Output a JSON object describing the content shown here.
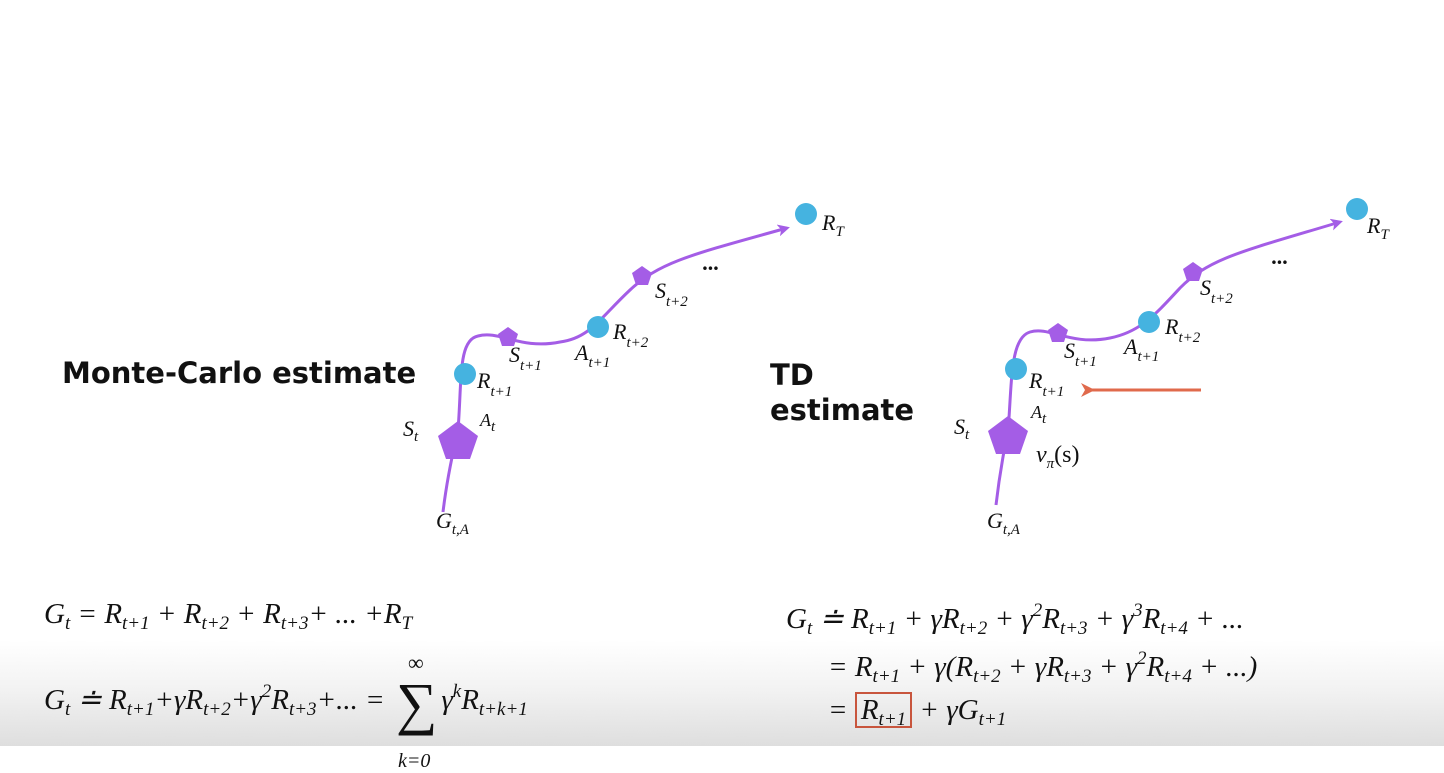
{
  "headings": {
    "mc": "Monte-Carlo estimate",
    "td_line1": "TD",
    "td_line2": "estimate"
  },
  "diagram_labels": {
    "R": "R",
    "S": "S",
    "A": "A",
    "G": "G",
    "T": "T",
    "t": "t",
    "t1": "t+1",
    "t2": "t+2",
    "tA": "t,A",
    "ellipsis": "...",
    "v": "v",
    "pi": "π",
    "s_arg": "(s)"
  },
  "colors": {
    "path": "#a45de6",
    "state": "#a45de6",
    "reward": "#45b3e0",
    "arrow_red": "#e06a4c",
    "box": "#c8553d"
  },
  "equations": {
    "mc1": {
      "G": "G",
      "t": "t",
      "eq": " = ",
      "R": "R",
      "s1": "t+1",
      "s2": "t+2",
      "s3": "t+3",
      "T": "T",
      "plus": " + ",
      "dots": "+ ... +"
    },
    "mc2": {
      "G": "G",
      "t": "t",
      "deq": " ≐ ",
      "R": "R",
      "s1": "t+1",
      "s2": "t+2",
      "s3": "t+3",
      "gamma": "γ",
      "two": "2",
      "plus": "+",
      "dots": "+... = ",
      "sigma": "∑",
      "inf": "∞",
      "kzero": "k=0",
      "k": "k",
      "sk": "t+k+1"
    },
    "td1": {
      "G": "G",
      "t": "t",
      "deq": " ≐ ",
      "R": "R",
      "s1": "t+1",
      "s2": "t+2",
      "s3": "t+3",
      "s4": "t+4",
      "gamma": "γ",
      "two": "2",
      "three": "3",
      "plus": " + ",
      "dots": " + ..."
    },
    "td2": {
      "eq": "= ",
      "R": "R",
      "s1": "t+1",
      "s2": "t+2",
      "s3": "t+3",
      "s4": "t+4",
      "gamma": "γ",
      "two": "2",
      "plus": " + ",
      "open": "(",
      "close": " + ...)"
    },
    "td3": {
      "eq": "= ",
      "R": "R",
      "s1": "t+1",
      "G": "G",
      "gamma": "γ",
      "plus": " + "
    }
  }
}
